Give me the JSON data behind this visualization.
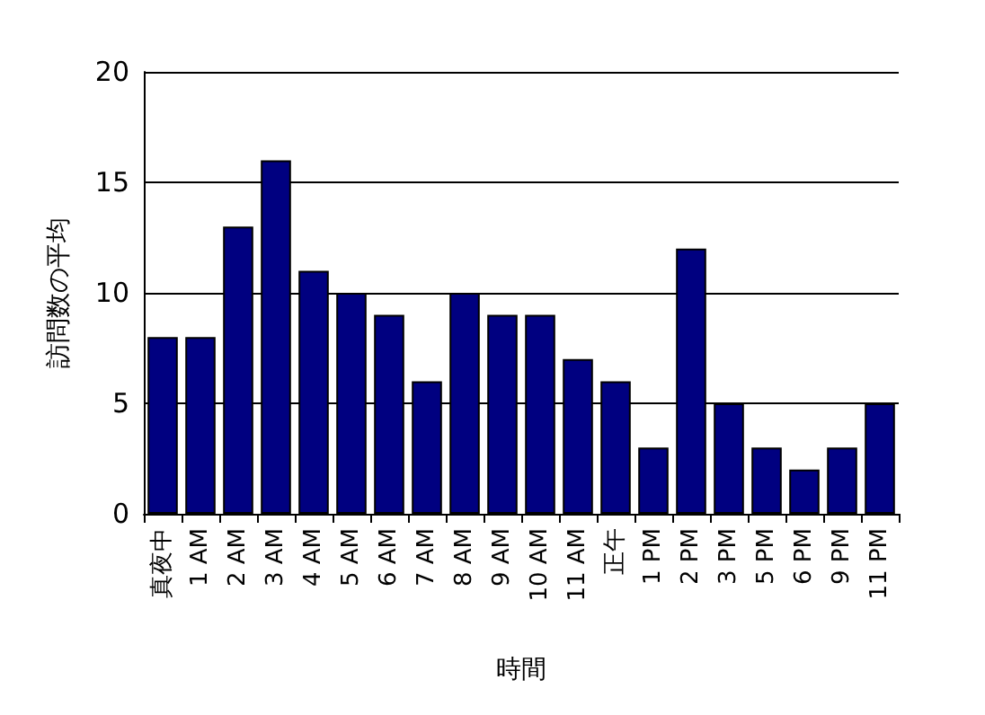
{
  "chart_data": {
    "type": "bar",
    "xlabel": "時間",
    "ylabel": "訪問数の平均",
    "categories": [
      "真夜中",
      "1 AM",
      "2 AM",
      "3 AM",
      "4 AM",
      "5 AM",
      "6 AM",
      "7 AM",
      "8 AM",
      "9 AM",
      "10 AM",
      "11 AM",
      "正午",
      "1 PM",
      "2 PM",
      "3 PM",
      "5 PM",
      "6 PM",
      "9 PM",
      "11 PM"
    ],
    "values": [
      8,
      8,
      13,
      16,
      11,
      10,
      9,
      6,
      10,
      9,
      9,
      7,
      6,
      3,
      12,
      5,
      3,
      2,
      3,
      5
    ],
    "color": "#000080",
    "ylim": [
      0,
      20
    ],
    "yticks": [
      0,
      5,
      10,
      15,
      20
    ],
    "grid": "y"
  }
}
